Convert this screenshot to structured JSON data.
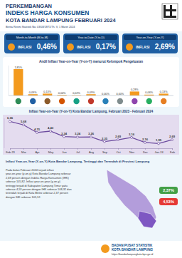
{
  "header": {
    "title1": "PERKEMBANGAN",
    "title2": "INDEKS HARGA KONSUMEN",
    "title3": "KOTA BANDAR LAMPUNG FEBRUARI 2024",
    "subtitle": "Berita Resmi Statistik No. 03/03/1871/Th. V, 1 Maret 2024"
  },
  "summary": [
    {
      "label": "Month-to-Month (M-to-M)",
      "kind": "INFLASI",
      "value": 0.46,
      "value_label": "0,46%"
    },
    {
      "label": "Year-to-Date (Y-to-D)",
      "kind": "INFLASI",
      "value": 0.17,
      "value_label": "0,17%"
    },
    {
      "label": "Year-on-Year (Y-on-Y)",
      "kind": "INFLASI",
      "value": 2.69,
      "value_label": "2,69%"
    }
  ],
  "chart_data": [
    {
      "type": "bar",
      "title": "Andil Inflasi Year-on-Year (Y-on-Y) menurut Kelompok Pengeluaran",
      "categories": [
        null,
        null,
        null,
        null,
        null,
        null,
        null,
        null,
        null,
        null,
        null
      ],
      "values": [
        1.85,
        0.09,
        0.13,
        0.04,
        0.02,
        0.09,
        0.0,
        0.0,
        0.28,
        0.06,
        0.13
      ],
      "value_labels": [
        "1,85%",
        "0,09%",
        "0,13%",
        "0,04%",
        "0,02%",
        "0,09%",
        "0,00%",
        "0,00%",
        "0,28%",
        "0,06%",
        "0,13%"
      ],
      "color": "#f39a1e",
      "ylim": [
        0,
        2.1
      ],
      "tick_labels": false,
      "data_labels": true,
      "grid": false
    },
    {
      "type": "line",
      "title": "Inflasi Year-on-Year (Y-on-Y) Kota Bandar Lampung, Februari 2023 - Februari 2024",
      "categories": [
        "Feb-23",
        "Mar",
        "Apr",
        "May",
        "Jun",
        "Jul",
        "Aug",
        "Sep",
        "Oct",
        "Nov",
        "Dec",
        "Jan-24",
        "Feb"
      ],
      "values": [
        6.36,
        5.68,
        4.15,
        4.43,
        3.34,
        3.24,
        3.26,
        2.35,
        2.69,
        3.16,
        2.16,
        1.95,
        2.69
      ],
      "value_labels": [
        "6,36",
        "5,68",
        "4,15",
        "4,43",
        "3,34",
        "3,24",
        "3,26",
        "2,35",
        "2,69",
        "3,16",
        "2,16",
        "1,95",
        "2,69"
      ],
      "color": "#6b4a9e",
      "ylim": [
        1,
        7
      ],
      "tick_labels": "x",
      "data_labels": true,
      "marker": "circle",
      "grid": false
    }
  ],
  "map": {
    "title": "Inflasi Year-on-Year (Y-on-Y) Kota Bandar Lampung, Tertinggi dan Terendah di Provinsi Lampung",
    "text": "Pada bulan Februari 2024 terjadi inflasi year-on-year (y-on-y) Kota Bandar Lampung sebesar 2,69 persen dengan Indeks Harga Konsumen (IHK) sebesar 105,82. Inflasi year-on-year (y-on-y) tertinggi terjadi di Kabupaten Lampung Timur yaitu sebesar 4,53 persen dengan IHK sebesar 108,32 dan terendah terjadi di Kota Metro sebesar 2,37 persen dengan IHK sebesar 105,12.",
    "badges": [
      {
        "value": 2.37,
        "label": "2,37%"
      },
      {
        "value": 4.53,
        "label": "4,53%"
      }
    ]
  },
  "footer": {
    "org": "BADAN PUSAT STATISTIK",
    "org2": "KOTA BANDAR LAMPUNG",
    "url": "https://bandarlampungkota.bps.go.id"
  }
}
